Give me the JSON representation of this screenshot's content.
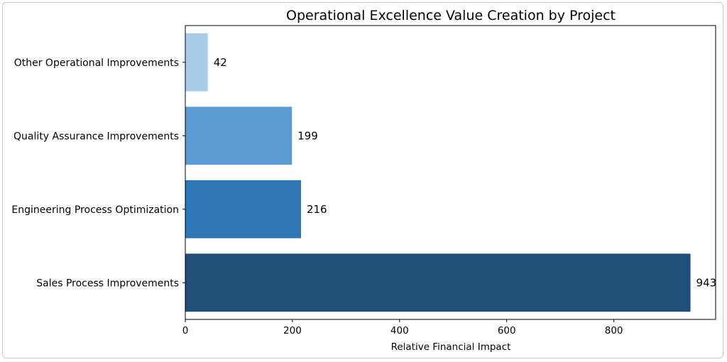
{
  "chart_data": {
    "type": "bar",
    "orientation": "horizontal",
    "title": "Operational Excellence Value Creation by Project",
    "xlabel": "Relative Financial Impact",
    "ylabel": "",
    "categories": [
      "Sales Process Improvements",
      "Engineering Process Optimization",
      "Quality Assurance Improvements",
      "Other Operational Improvements"
    ],
    "values": [
      943,
      216,
      199,
      42
    ],
    "colors": [
      "#1f4e79",
      "#2e75b6",
      "#5b9bd5",
      "#a9cbea"
    ],
    "xlim": [
      0,
      990
    ],
    "xticks": [
      0,
      200,
      400,
      600,
      800
    ],
    "grid": false,
    "legend": "none"
  }
}
